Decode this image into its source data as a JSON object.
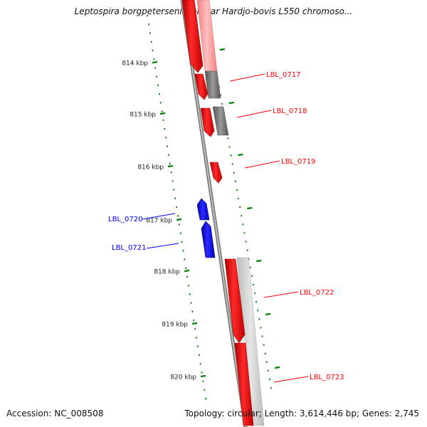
{
  "title": "Leptospira borgpetersenii serovar Hardjo-bovis L550 chromoso...",
  "accession": "Accession: NC_008508",
  "summary": "Topology: circular; Length: 3,614,446 bp; Genes: 2,745",
  "ticks": [
    "814 kbp",
    "815 kbp",
    "816 kbp",
    "817 kbp",
    "818 kbp",
    "819 kbp",
    "820 kbp"
  ],
  "genes": [
    {
      "label": "LBL_0717",
      "strand": "forward"
    },
    {
      "label": "LBL_0718",
      "strand": "forward"
    },
    {
      "label": "LBL_0719",
      "strand": "forward"
    },
    {
      "label": "LBL_0720",
      "strand": "reverse"
    },
    {
      "label": "LBL_0721",
      "strand": "reverse"
    },
    {
      "label": "LBL_0722",
      "strand": "forward"
    },
    {
      "label": "LBL_0723",
      "strand": "forward"
    }
  ],
  "colors": {
    "forward": "#ff0000",
    "reverse": "#0000ff",
    "tick": "#008000",
    "backbone": "#808080"
  }
}
